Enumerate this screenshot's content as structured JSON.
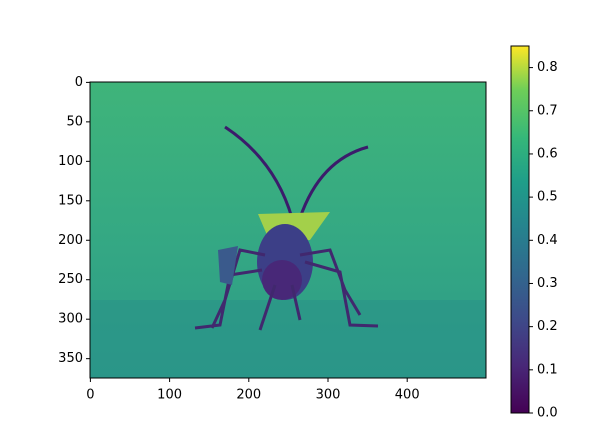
{
  "chart_data": {
    "type": "image",
    "xlim": [
      -0.5,
      499.5
    ],
    "ylim": [
      374.5,
      -0.5
    ],
    "xticks": [
      0,
      100,
      200,
      300,
      400
    ],
    "yticks": [
      0,
      50,
      100,
      150,
      200,
      250,
      300,
      350
    ],
    "colorbar": {
      "colormap": "viridis",
      "lim": [
        0,
        0.85
      ],
      "ticks": [
        {
          "value": 0,
          "label": "0.0"
        },
        0.1,
        0.2,
        0.3,
        0.4,
        0.5,
        0.6,
        0.7,
        0.8
      ]
    }
  }
}
